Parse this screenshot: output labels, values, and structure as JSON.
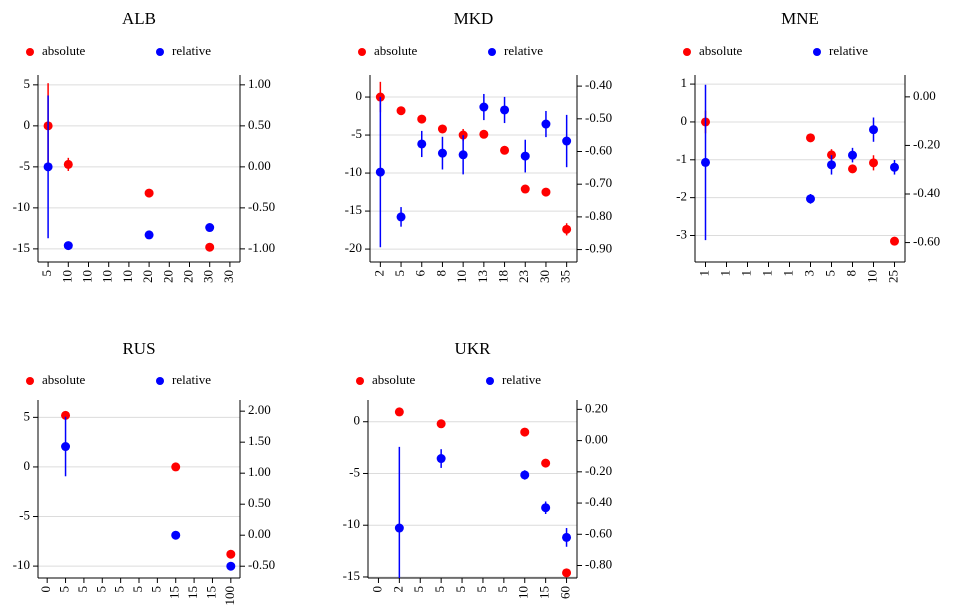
{
  "chart_data": [
    {
      "type": "scatter",
      "title": "ALB",
      "legend": "top",
      "categories": [
        "5",
        "10",
        "10",
        "10",
        "10",
        "20",
        "20",
        "20",
        "30",
        "30"
      ],
      "series": [
        {
          "name": "absolute",
          "color": "#ff0000",
          "axis": "y",
          "values": [
            0,
            -4.7,
            null,
            null,
            null,
            -8.2,
            null,
            null,
            -14.8,
            null
          ],
          "errors": [
            5.2,
            0.8,
            null,
            null,
            null,
            0.3,
            null,
            null,
            0.4,
            null
          ]
        },
        {
          "name": "relative",
          "color": "#0000ff",
          "axis": "y2",
          "values": [
            0,
            -0.96,
            null,
            null,
            null,
            -0.83,
            null,
            null,
            -0.74,
            null
          ],
          "errors": [
            0.87,
            null,
            null,
            null,
            null,
            null,
            null,
            null,
            null,
            null
          ]
        }
      ],
      "ylim": [
        -16.6,
        6.2
      ],
      "yticks": [
        5,
        0,
        -5,
        -10,
        -15
      ],
      "y2lim": [
        -1.16,
        1.12
      ],
      "y2ticks": [
        {
          "value": 1,
          "label": "1.00"
        },
        {
          "value": 0.5,
          "label": "0.50"
        },
        {
          "value": 0,
          "label": "0.00"
        },
        {
          "value": -0.5,
          "label": "-0.50"
        },
        {
          "value": -1,
          "label": "-1.00"
        }
      ],
      "grid": true
    },
    {
      "type": "scatter",
      "title": "MKD",
      "legend": "top",
      "categories": [
        "2",
        "5",
        "6",
        "8",
        "10",
        "13",
        "18",
        "23",
        "30",
        "35"
      ],
      "series": [
        {
          "name": "absolute",
          "color": "#ff0000",
          "axis": "y",
          "values": [
            0,
            -1.8,
            -2.9,
            -4.2,
            -5.0,
            -4.9,
            -7.0,
            -12.1,
            -12.5,
            -17.4
          ],
          "errors": [
            2,
            null,
            null,
            null,
            0.8,
            null,
            null,
            0.4,
            null,
            0.8
          ]
        },
        {
          "name": "relative",
          "color": "#0000ff",
          "axis": "y2",
          "values": [
            -0.663,
            -0.8,
            -0.577,
            -0.605,
            -0.61,
            -0.464,
            -0.473,
            -0.614,
            -0.516,
            -0.568
          ],
          "errors": [
            0.23,
            0.03,
            0.04,
            0.05,
            0.06,
            0.04,
            0.04,
            0.05,
            0.04,
            0.08
          ]
        }
      ],
      "ylim": [
        -21.7,
        2.9
      ],
      "yticks": [
        0,
        -5,
        -10,
        -15,
        -20
      ],
      "y2lim": [
        -0.938,
        -0.366
      ],
      "y2ticks": [
        {
          "value": -0.4,
          "label": "-0.40"
        },
        {
          "value": -0.5,
          "label": "-0.50"
        },
        {
          "value": -0.6,
          "label": "-0.60"
        },
        {
          "value": -0.7,
          "label": "-0.70"
        },
        {
          "value": -0.8,
          "label": "-0.80"
        },
        {
          "value": -0.9,
          "label": "-0.90"
        }
      ],
      "grid": true
    },
    {
      "type": "scatter",
      "title": "MNE",
      "legend": "top",
      "categories": [
        "1",
        "1",
        "1",
        "1",
        "1",
        "3",
        "5",
        "8",
        "10",
        "25"
      ],
      "series": [
        {
          "name": "absolute",
          "color": "#ff0000",
          "axis": "y",
          "values": [
            0,
            null,
            null,
            null,
            null,
            -0.42,
            -0.87,
            -1.24,
            -1.08,
            -3.15
          ],
          "errors": [
            0.3,
            null,
            null,
            null,
            null,
            null,
            0.15,
            0.1,
            0.2,
            0.1
          ]
        },
        {
          "name": "relative",
          "color": "#0000ff",
          "axis": "y2",
          "values": [
            -0.27,
            null,
            null,
            null,
            null,
            -0.42,
            -0.28,
            -0.24,
            -0.135,
            -0.29
          ],
          "errors": [
            0.32,
            null,
            null,
            null,
            null,
            0.02,
            0.04,
            0.03,
            0.05,
            0.03
          ]
        }
      ],
      "ylim": [
        -3.7,
        1.24
      ],
      "yticks": [
        1,
        0,
        -1,
        -2,
        -3
      ],
      "y2lim": [
        -0.68,
        0.09
      ],
      "y2ticks": [
        {
          "value": 0,
          "label": "0.00"
        },
        {
          "value": -0.2,
          "label": "-0.20"
        },
        {
          "value": -0.4,
          "label": "-0.40"
        },
        {
          "value": -0.6,
          "label": "-0.60"
        }
      ],
      "grid": true
    },
    {
      "type": "scatter",
      "title": "RUS",
      "legend": "top",
      "categories": [
        "0",
        "5",
        "5",
        "5",
        "5",
        "5",
        "5",
        "15",
        "15",
        "15",
        "100"
      ],
      "series": [
        {
          "name": "absolute",
          "color": "#ff0000",
          "axis": "y",
          "values": [
            null,
            5.2,
            null,
            null,
            null,
            null,
            null,
            0,
            null,
            null,
            -8.8
          ],
          "errors": [
            null,
            0.4,
            null,
            null,
            null,
            null,
            null,
            null,
            null,
            null,
            null
          ]
        },
        {
          "name": "relative",
          "color": "#0000ff",
          "axis": "y2",
          "values": [
            null,
            1.43,
            null,
            null,
            null,
            null,
            null,
            0,
            null,
            null,
            -0.5
          ],
          "errors": [
            null,
            0.48,
            null,
            null,
            null,
            null,
            null,
            null,
            null,
            null,
            null
          ]
        }
      ],
      "ylim": [
        -11.2,
        6.75
      ],
      "yticks": [
        5,
        0,
        -5,
        -10
      ],
      "y2lim": [
        -0.69,
        2.18
      ],
      "y2ticks": [
        {
          "value": 2,
          "label": "2.00"
        },
        {
          "value": 1.5,
          "label": "1.50"
        },
        {
          "value": 1,
          "label": "1.00"
        },
        {
          "value": 0.5,
          "label": "0.50"
        },
        {
          "value": 0,
          "label": "0.00"
        },
        {
          "value": -0.5,
          "label": "-0.50"
        }
      ],
      "grid": true
    },
    {
      "type": "scatter",
      "title": "UKR",
      "legend": "top",
      "categories": [
        "0",
        "2",
        "5",
        "5",
        "5",
        "5",
        "5",
        "10",
        "15",
        "60"
      ],
      "series": [
        {
          "name": "absolute",
          "color": "#ff0000",
          "axis": "y",
          "values": [
            null,
            0.95,
            null,
            -0.2,
            null,
            null,
            null,
            -1.0,
            -4.0,
            -14.6
          ],
          "errors": [
            null,
            null,
            null,
            null,
            null,
            null,
            null,
            null,
            null,
            null
          ]
        },
        {
          "name": "relative",
          "color": "#0000ff",
          "axis": "y2",
          "values": [
            null,
            -0.56,
            null,
            -0.115,
            null,
            null,
            null,
            -0.22,
            -0.43,
            -0.62
          ],
          "errors": [
            null,
            0.52,
            null,
            0.06,
            null,
            null,
            null,
            0.03,
            0.04,
            0.06
          ]
        }
      ],
      "ylim": [
        -15.1,
        2.1
      ],
      "yticks": [
        0,
        -5,
        -10,
        -15
      ],
      "y2lim": [
        -0.88,
        0.26
      ],
      "y2ticks": [
        {
          "value": 0.2,
          "label": "0.20"
        },
        {
          "value": 0,
          "label": "0.00"
        },
        {
          "value": -0.2,
          "label": "-0.20"
        },
        {
          "value": -0.4,
          "label": "-0.40"
        },
        {
          "value": -0.6,
          "label": "-0.60"
        },
        {
          "value": -0.8,
          "label": "-0.80"
        }
      ],
      "grid": true
    }
  ]
}
